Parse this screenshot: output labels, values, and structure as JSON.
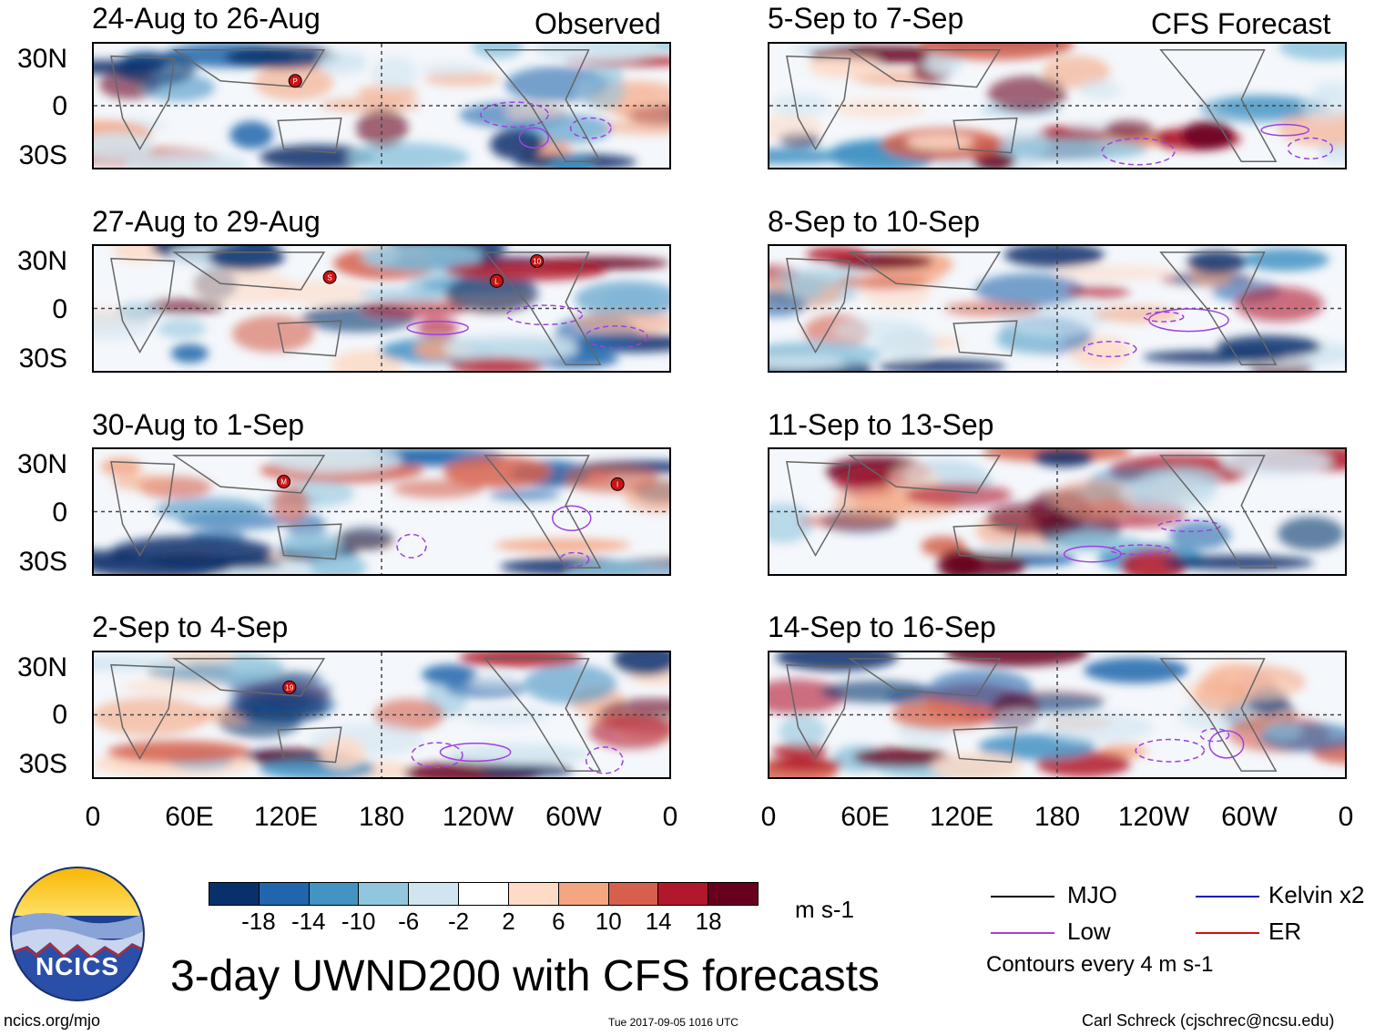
{
  "header": {
    "left_tag": "Observed",
    "right_tag": "CFS Forecast"
  },
  "panels_left": [
    {
      "title": "24-Aug to 26-Aug",
      "markers": [
        "P"
      ]
    },
    {
      "title": "27-Aug to 29-Aug",
      "markers": [
        "S",
        "10",
        "L"
      ]
    },
    {
      "title": "30-Aug to 1-Sep",
      "markers": [
        "M",
        "I"
      ]
    },
    {
      "title": "2-Sep to 4-Sep",
      "markers": [
        "19"
      ]
    }
  ],
  "panels_right": [
    {
      "title": "5-Sep to 7-Sep"
    },
    {
      "title": "8-Sep to 10-Sep"
    },
    {
      "title": "11-Sep to 13-Sep"
    },
    {
      "title": "14-Sep to 16-Sep"
    }
  ],
  "latitude_labels": [
    "30N",
    "0",
    "30S"
  ],
  "longitude_labels": [
    "0",
    "60E",
    "120E",
    "180",
    "120W",
    "60W",
    "0"
  ],
  "colorbar": {
    "colors": [
      "#08306b",
      "#2166ac",
      "#4393c3",
      "#92c5de",
      "#d1e5f0",
      "#ffffff",
      "#fddbc7",
      "#f4a582",
      "#d6604d",
      "#b2182b",
      "#67001f"
    ],
    "labels": [
      "-18",
      "-14",
      "-10",
      "-6",
      "-2",
      "2",
      "6",
      "10",
      "14",
      "18"
    ],
    "unit": "m s-1"
  },
  "legend": {
    "mjo": {
      "label": "MJO",
      "color": "#000000"
    },
    "kelvin": {
      "label": "Kelvin x2",
      "color": "#1010c0"
    },
    "low": {
      "label": "Low",
      "color": "#a040e0"
    },
    "er": {
      "label": "ER",
      "color": "#d01010"
    },
    "contours_note": "Contours every 4 m s-1"
  },
  "logo": {
    "text": "NCICS"
  },
  "main_title": "3-day UWND200 with CFS forecasts",
  "footer": {
    "url": "ncics.org/mjo",
    "timestamp": "Tue 2017-09-05 1016 UTC",
    "credit": "Carl Schreck (cjschrec@ncsu.edu)"
  }
}
